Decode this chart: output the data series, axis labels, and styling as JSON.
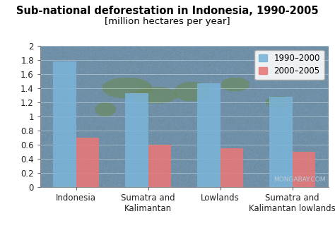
{
  "title": "Sub-national deforestation in Indonesia, 1990-2005",
  "subtitle": "[million hectares per year]",
  "categories": [
    "Indonesia",
    "Sumatra and\nKalimantan",
    "Lowlands",
    "Sumatra and\nKalimantan lowlands"
  ],
  "series_1990_2000": [
    1.78,
    1.33,
    1.47,
    1.28
  ],
  "series_2000_2005": [
    0.7,
    0.6,
    0.55,
    0.5
  ],
  "bar_color_1990": "#7ab4d8",
  "bar_color_2000": "#e87878",
  "ylim": [
    0,
    2.0
  ],
  "yticks": [
    0,
    0.2,
    0.4,
    0.6,
    0.8,
    1.0,
    1.2,
    1.4,
    1.6,
    1.8,
    2.0
  ],
  "ytick_labels": [
    "0",
    "0.2",
    "0.4",
    "0.6",
    "0.8",
    "1",
    "1.2",
    "1.4",
    "1.6",
    "1.8",
    "2"
  ],
  "legend_labels": [
    "1990–2000",
    "2000–2005"
  ],
  "watermark": "MONGABAY.COM",
  "map_base_color": "#7090a8",
  "map_land_color": "#6a8a60",
  "title_fontsize": 10.5,
  "subtitle_fontsize": 9.5,
  "tick_fontsize": 8.5,
  "legend_fontsize": 8.5,
  "bar_width": 0.32,
  "fig_bg": "#ffffff"
}
